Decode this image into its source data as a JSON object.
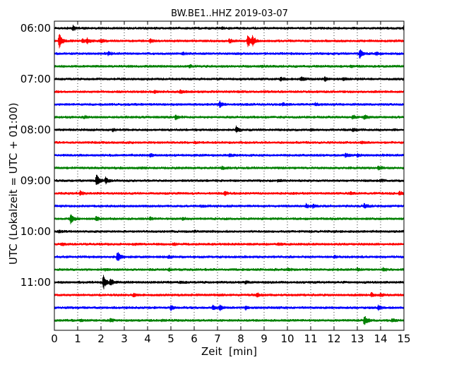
{
  "chart_data": {
    "type": "line",
    "title": "BW.BE1..HHZ 2019-03-07",
    "xlabel": "Zeit  [min]",
    "ylabel": "UTC (Lokalzeit = UTC + 01:00)",
    "xlim": [
      0,
      15
    ],
    "x_ticks": [
      "0",
      "1",
      "2",
      "3",
      "4",
      "5",
      "6",
      "7",
      "8",
      "9",
      "10",
      "11",
      "12",
      "13",
      "14",
      "15"
    ],
    "y_ticks": [
      "06:00",
      "07:00",
      "08:00",
      "09:00",
      "10:00",
      "11:00"
    ],
    "grid": "vertical dotted",
    "trace_colors": [
      "#000000",
      "#ff0000",
      "#0000ff",
      "#008000"
    ],
    "series": [
      {
        "start": "06:00",
        "events": [
          {
            "t": 0.8,
            "a": 1.2
          },
          {
            "t": 7.2,
            "a": 0.4
          },
          {
            "t": 15.0,
            "a": 1.2
          }
        ]
      },
      {
        "start": "06:15",
        "events": [
          {
            "t": 0.2,
            "a": 3.5
          },
          {
            "t": 1.2,
            "a": 1.0
          },
          {
            "t": 1.4,
            "a": 1.0
          },
          {
            "t": 2.0,
            "a": 0.7
          },
          {
            "t": 4.1,
            "a": 0.9
          },
          {
            "t": 7.5,
            "a": 1.0
          },
          {
            "t": 8.3,
            "a": 3.0
          },
          {
            "t": 8.5,
            "a": 2.0
          }
        ]
      },
      {
        "start": "06:30",
        "events": [
          {
            "t": 2.3,
            "a": 0.6
          },
          {
            "t": 5.5,
            "a": 0.5
          },
          {
            "t": 13.1,
            "a": 2.0
          },
          {
            "t": 13.8,
            "a": 0.6
          }
        ]
      },
      {
        "start": "06:45",
        "events": [
          {
            "t": 5.8,
            "a": 0.6
          },
          {
            "t": 12.7,
            "a": 0.5
          },
          {
            "t": 8.9,
            "a": 0.4
          }
        ]
      },
      {
        "start": "07:00",
        "events": [
          {
            "t": 9.7,
            "a": 0.8
          },
          {
            "t": 10.6,
            "a": 1.0
          },
          {
            "t": 11.6,
            "a": 1.0
          },
          {
            "t": 12.4,
            "a": 0.5
          }
        ]
      },
      {
        "start": "07:15",
        "events": [
          {
            "t": 4.3,
            "a": 0.6
          },
          {
            "t": 5.4,
            "a": 0.7
          },
          {
            "t": 9.0,
            "a": 0.4
          }
        ]
      },
      {
        "start": "07:30",
        "events": [
          {
            "t": 7.1,
            "a": 1.2
          },
          {
            "t": 9.8,
            "a": 0.6
          },
          {
            "t": 11.2,
            "a": 0.5
          }
        ]
      },
      {
        "start": "07:45",
        "events": [
          {
            "t": 1.3,
            "a": 0.5
          },
          {
            "t": 5.2,
            "a": 1.2
          },
          {
            "t": 12.8,
            "a": 0.7
          },
          {
            "t": 13.3,
            "a": 1.0
          }
        ]
      },
      {
        "start": "08:00",
        "events": [
          {
            "t": 2.5,
            "a": 0.5
          },
          {
            "t": 7.8,
            "a": 1.3
          },
          {
            "t": 11.0,
            "a": 0.4
          },
          {
            "t": 12.8,
            "a": 0.7
          }
        ]
      },
      {
        "start": "08:15",
        "events": [
          {
            "t": 6.0,
            "a": 0.4
          },
          {
            "t": 13.2,
            "a": 0.5
          }
        ]
      },
      {
        "start": "08:30",
        "events": [
          {
            "t": 4.1,
            "a": 0.7
          },
          {
            "t": 7.5,
            "a": 0.7
          },
          {
            "t": 12.5,
            "a": 1.0
          },
          {
            "t": 13.0,
            "a": 0.6
          }
        ]
      },
      {
        "start": "08:45",
        "events": [
          {
            "t": 7.2,
            "a": 0.6
          },
          {
            "t": 13.9,
            "a": 0.8
          }
        ]
      },
      {
        "start": "09:00",
        "events": [
          {
            "t": 1.8,
            "a": 3.0
          },
          {
            "t": 2.2,
            "a": 1.5
          },
          {
            "t": 9.6,
            "a": 0.4
          },
          {
            "t": 14.0,
            "a": 0.4
          }
        ]
      },
      {
        "start": "09:15",
        "events": [
          {
            "t": 1.1,
            "a": 1.2
          },
          {
            "t": 7.3,
            "a": 0.9
          },
          {
            "t": 12.7,
            "a": 0.6
          },
          {
            "t": 14.8,
            "a": 0.9
          }
        ]
      },
      {
        "start": "09:30",
        "events": [
          {
            "t": 6.3,
            "a": 0.4
          },
          {
            "t": 10.8,
            "a": 0.8
          },
          {
            "t": 11.1,
            "a": 0.7
          },
          {
            "t": 13.3,
            "a": 1.0
          }
        ]
      },
      {
        "start": "09:45",
        "events": [
          {
            "t": 0.7,
            "a": 2.5
          },
          {
            "t": 1.8,
            "a": 1.1
          },
          {
            "t": 4.1,
            "a": 0.6
          },
          {
            "t": 5.5,
            "a": 0.5
          }
        ]
      },
      {
        "start": "10:00",
        "events": [
          {
            "t": 0.2,
            "a": 0.5
          },
          {
            "t": 6.0,
            "a": 0.3
          },
          {
            "t": 15.0,
            "a": 0.5
          }
        ]
      },
      {
        "start": "10:15",
        "events": [
          {
            "t": 0.3,
            "a": 0.6
          },
          {
            "t": 3.5,
            "a": 0.4
          },
          {
            "t": 5.1,
            "a": 0.5
          },
          {
            "t": 9.6,
            "a": 0.4
          }
        ]
      },
      {
        "start": "10:30",
        "events": [
          {
            "t": 2.7,
            "a": 2.4
          },
          {
            "t": 4.9,
            "a": 0.6
          },
          {
            "t": 12.0,
            "a": 0.4
          }
        ]
      },
      {
        "start": "10:45",
        "events": [
          {
            "t": 2.2,
            "a": 0.4
          },
          {
            "t": 4.9,
            "a": 0.6
          },
          {
            "t": 10.0,
            "a": 0.6
          },
          {
            "t": 13.0,
            "a": 0.5
          },
          {
            "t": 14.1,
            "a": 0.7
          }
        ]
      },
      {
        "start": "11:00",
        "events": [
          {
            "t": 2.1,
            "a": 3.2
          },
          {
            "t": 2.4,
            "a": 1.6
          },
          {
            "t": 5.4,
            "a": 0.4
          },
          {
            "t": 8.2,
            "a": 0.4
          }
        ]
      },
      {
        "start": "11:15",
        "events": [
          {
            "t": 3.4,
            "a": 0.7
          },
          {
            "t": 8.7,
            "a": 0.9
          },
          {
            "t": 13.6,
            "a": 0.9
          },
          {
            "t": 14.0,
            "a": 0.8
          }
        ]
      },
      {
        "start": "11:30",
        "events": [
          {
            "t": 5.0,
            "a": 1.0
          },
          {
            "t": 6.8,
            "a": 1.0
          },
          {
            "t": 7.1,
            "a": 1.2
          },
          {
            "t": 8.2,
            "a": 0.8
          },
          {
            "t": 13.9,
            "a": 1.2
          }
        ]
      },
      {
        "start": "11:45",
        "events": [
          {
            "t": 1.1,
            "a": 0.4
          },
          {
            "t": 2.4,
            "a": 0.7
          },
          {
            "t": 4.6,
            "a": 0.4
          },
          {
            "t": 13.3,
            "a": 2.2
          },
          {
            "t": 14.5,
            "a": 0.6
          }
        ]
      }
    ]
  }
}
